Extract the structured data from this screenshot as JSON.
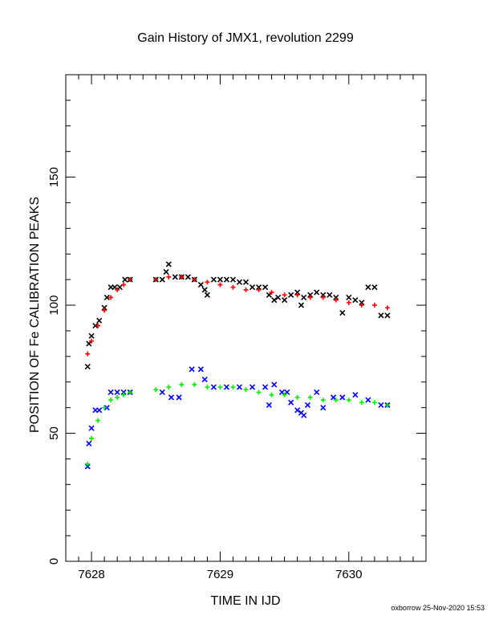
{
  "chart_data": {
    "type": "scatter",
    "title": "Gain History of JMX1, revolution 2299",
    "xlabel": "TIME IN IJD",
    "ylabel": "POSITION OF Fe CALIBRATION PEAKS",
    "xlim": [
      7627.8,
      7630.6
    ],
    "ylim": [
      0,
      190
    ],
    "xticks": [
      7628,
      7629,
      7630
    ],
    "yticks": [
      0,
      50,
      100,
      150
    ],
    "grid": false,
    "series": [
      {
        "color": "#000000",
        "marker": "x",
        "x": [
          7627.97,
          7627.98,
          7628.0,
          7628.03,
          7628.06,
          7628.1,
          7628.12,
          7628.15,
          7628.18,
          7628.22,
          7628.26,
          7628.3,
          7628.5,
          7628.55,
          7628.58,
          7628.6,
          7628.65,
          7628.7,
          7628.75,
          7628.8,
          7628.85,
          7628.88,
          7628.9,
          7628.95,
          7629.0,
          7629.05,
          7629.1,
          7629.15,
          7629.2,
          7629.25,
          7629.3,
          7629.35,
          7629.38,
          7629.42,
          7629.45,
          7629.5,
          7629.55,
          7629.6,
          7629.63,
          7629.65,
          7629.7,
          7629.75,
          7629.8,
          7629.85,
          7629.9,
          7629.95,
          7630.0,
          7630.05,
          7630.1,
          7630.15,
          7630.2,
          7630.25,
          7630.3
        ],
        "y": [
          76,
          85,
          88,
          92,
          94,
          99,
          103,
          107,
          107,
          107,
          110,
          110,
          110,
          110,
          113,
          116,
          111,
          111,
          111,
          110,
          108,
          106,
          104,
          110,
          110,
          110,
          110,
          109,
          109,
          107,
          107,
          107,
          104,
          102,
          103,
          102,
          104,
          105,
          100,
          103,
          104,
          105,
          104,
          104,
          103,
          97,
          103,
          102,
          101,
          107,
          107,
          96,
          96
        ]
      },
      {
        "color": "#ff0000",
        "marker": "+",
        "x": [
          7627.97,
          7628.0,
          7628.05,
          7628.1,
          7628.15,
          7628.2,
          7628.25,
          7628.3,
          7628.5,
          7628.6,
          7628.7,
          7628.8,
          7628.9,
          7629.0,
          7629.1,
          7629.2,
          7629.3,
          7629.4,
          7629.5,
          7629.6,
          7629.7,
          7629.8,
          7629.9,
          7630.0,
          7630.1,
          7630.2,
          7630.3
        ],
        "y": [
          81,
          86,
          92,
          98,
          103,
          106,
          108,
          110,
          110,
          111,
          111,
          110,
          109,
          108,
          107,
          106,
          106,
          105,
          104,
          104,
          103,
          103,
          102,
          101,
          100,
          100,
          99
        ]
      },
      {
        "color": "#0000ff",
        "marker": "x",
        "x": [
          7627.97,
          7627.98,
          7628.0,
          7628.03,
          7628.06,
          7628.12,
          7628.15,
          7628.2,
          7628.25,
          7628.3,
          7628.55,
          7628.62,
          7628.68,
          7628.78,
          7628.85,
          7628.88,
          7628.95,
          7629.05,
          7629.15,
          7629.25,
          7629.35,
          7629.38,
          7629.42,
          7629.48,
          7629.52,
          7629.55,
          7629.6,
          7629.63,
          7629.65,
          7629.68,
          7629.75,
          7629.8,
          7629.88,
          7629.95,
          7630.05,
          7630.15,
          7630.25,
          7630.3
        ],
        "y": [
          37,
          46,
          52,
          59,
          59,
          60,
          66,
          66,
          66,
          66,
          66,
          64,
          64,
          75,
          75,
          71,
          68,
          68,
          68,
          68,
          68,
          61,
          69,
          66,
          66,
          62,
          59,
          58,
          57,
          61,
          66,
          60,
          64,
          64,
          65,
          63,
          61,
          61
        ]
      },
      {
        "color": "#00ee00",
        "marker": "+",
        "x": [
          7627.97,
          7628.0,
          7628.05,
          7628.1,
          7628.15,
          7628.2,
          7628.25,
          7628.3,
          7628.5,
          7628.6,
          7628.7,
          7628.8,
          7628.9,
          7629.0,
          7629.1,
          7629.2,
          7629.3,
          7629.4,
          7629.5,
          7629.6,
          7629.7,
          7629.8,
          7629.9,
          7630.0,
          7630.1,
          7630.2,
          7630.3
        ],
        "y": [
          38,
          48,
          55,
          60,
          63,
          64,
          65,
          66,
          67,
          68,
          69,
          69,
          68,
          68,
          68,
          67,
          66,
          65,
          65,
          64,
          64,
          63,
          63,
          63,
          62,
          62,
          61
        ]
      }
    ]
  },
  "footer": "oxborrow 25-Nov-2020 15:53"
}
